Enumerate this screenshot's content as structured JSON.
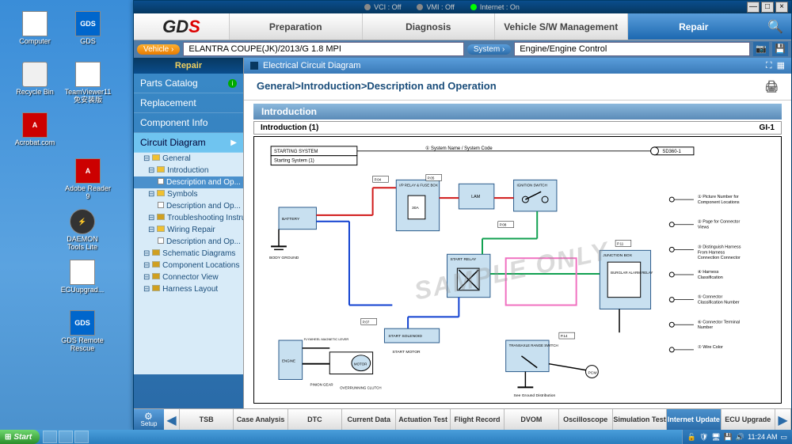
{
  "desktop": {
    "icons": [
      {
        "label": "Computer",
        "cls": ""
      },
      {
        "label": "GDS",
        "cls": "gds",
        "txt": "GDS"
      },
      {
        "label": "Recycle Bin",
        "cls": "trash"
      },
      {
        "label": "TeamViewer11 免安装版",
        "cls": ""
      },
      {
        "label": "Acrobat.com",
        "cls": "pdf",
        "txt": "A"
      },
      {
        "label": "",
        "cls": ""
      },
      {
        "label": "Adobe Reader 9",
        "cls": "pdf",
        "txt": "A"
      },
      {
        "label": "",
        "cls": ""
      },
      {
        "label": "DAEMON Tools Lite",
        "cls": "daemon",
        "txt": "⚡"
      },
      {
        "label": "",
        "cls": ""
      },
      {
        "label": "ECUupgrad...",
        "cls": ""
      },
      {
        "label": "",
        "cls": ""
      },
      {
        "label": "GDS Remote Rescue",
        "cls": "gds",
        "txt": "GDS"
      }
    ]
  },
  "titlebar": {
    "status": [
      {
        "label": "VCI : Off",
        "on": false
      },
      {
        "label": "VMI : Off",
        "on": false
      },
      {
        "label": "Internet : On",
        "on": true
      }
    ],
    "min": "—",
    "max": "□",
    "close": "×"
  },
  "menubar": {
    "logo_gd": "GD",
    "logo_s": "S",
    "tabs": [
      {
        "label": "Preparation",
        "active": false
      },
      {
        "label": "Diagnosis",
        "active": false
      },
      {
        "label": "Vehicle S/W Management",
        "active": false
      },
      {
        "label": "Repair",
        "active": true
      }
    ]
  },
  "selectors": {
    "vehicle_btn": "Vehicle ›",
    "vehicle_val": "ELANTRA COUPE(JK)/2013/G 1.8 MPI",
    "system_btn": "System ›",
    "system_val": "Engine/Engine Control"
  },
  "sidebar": {
    "header": "Repair",
    "items": [
      {
        "label": "Parts Catalog",
        "info": true
      },
      {
        "label": "Replacement"
      },
      {
        "label": "Component Info"
      },
      {
        "label": "Circuit Diagram",
        "active": true,
        "arrow": true
      }
    ],
    "tree": [
      {
        "label": "General",
        "lvl": 0,
        "ico": "open"
      },
      {
        "label": "Introduction",
        "lvl": 1,
        "ico": "open"
      },
      {
        "label": "Description and Op...",
        "lvl": 2,
        "sel": true
      },
      {
        "label": "Symbols",
        "lvl": 1,
        "ico": "open"
      },
      {
        "label": "Description and Op...",
        "lvl": 2
      },
      {
        "label": "Troubleshooting Instru...",
        "lvl": 1,
        "ico": "closed"
      },
      {
        "label": "Wiring Repair",
        "lvl": 1,
        "ico": "open"
      },
      {
        "label": "Description and Op...",
        "lvl": 2
      },
      {
        "label": "Schematic Diagrams",
        "lvl": 0,
        "ico": "closed"
      },
      {
        "label": "Component Locations",
        "lvl": 0,
        "ico": "closed"
      },
      {
        "label": "Connector View",
        "lvl": 0,
        "ico": "closed"
      },
      {
        "label": "Harness Layout",
        "lvl": 0,
        "ico": "closed"
      }
    ]
  },
  "main": {
    "pane_title": "Electrical Circuit Diagram",
    "breadcrumb": "General>Introduction>Description and Operation",
    "intro_hdr": "Introduction",
    "intro_left": "Introduction (1)",
    "intro_right": "GI-1",
    "watermark": "SAMPLE ONLY",
    "diagram": {
      "starting_title": "STARTING SYSTEM",
      "starting_sub": "Starting System (1)",
      "sys_code_note": "① System Name / System Code",
      "sd_code": "SD360-1",
      "legend": [
        "① Picture Number for Component Locations",
        "② Page for Connector Views",
        "③ Distinguish Harness From Harness Connection Connector",
        "④ Harness Classification",
        "⑤ Connector Classification Number",
        "⑥ Connector Terminal Number",
        "⑦ Wire Color"
      ],
      "labels": {
        "battery": "BATTERY",
        "body_gnd": "BODY GROUND",
        "flywheel": "FLYWHEEL MAGNETIC LEVER",
        "engine": "ENGINE",
        "pinion": "PINION GEAR",
        "motor": "MOTOR",
        "overrun": "OVERRUNNING CLUTCH",
        "solenoid": "START SOLENOID",
        "start_motor": "START MOTOR",
        "relay_fuse": "I/P RELAY & FUSE BOX",
        "fuse30a": "30A",
        "lam": "LAM",
        "ignition": "IGNITION SWITCH",
        "start_relay": "START RELAY",
        "burglar": "BURGLAR ALARM RELAY",
        "junction": "JUNCTION BOX",
        "transaxle": "TRANSAXLE RANGE SWITCH",
        "ground_dist": "See Ground Distribution",
        "pcm": "PCM"
      },
      "colors": {
        "wire_red": "#d01818",
        "wire_blue": "#1040d0",
        "wire_green": "#10a050",
        "wire_black": "#000000",
        "wire_pink": "#f070c0",
        "block_fill": "#c8e0f0",
        "block_stroke": "#2a5a8a"
      }
    }
  },
  "bottom": {
    "setup": "Setup",
    "tabs": [
      {
        "label": "TSB"
      },
      {
        "label": "Case Analysis"
      },
      {
        "label": "DTC"
      },
      {
        "label": "Current Data"
      },
      {
        "label": "Actuation Test"
      },
      {
        "label": "Flight Record"
      },
      {
        "label": "DVOM"
      },
      {
        "label": "Oscilloscope"
      },
      {
        "label": "Simulation Test"
      },
      {
        "label": "Internet Update",
        "on": true
      },
      {
        "label": "ECU Upgrade"
      }
    ]
  },
  "taskbar": {
    "start": "Start",
    "time": "11:24 AM"
  }
}
